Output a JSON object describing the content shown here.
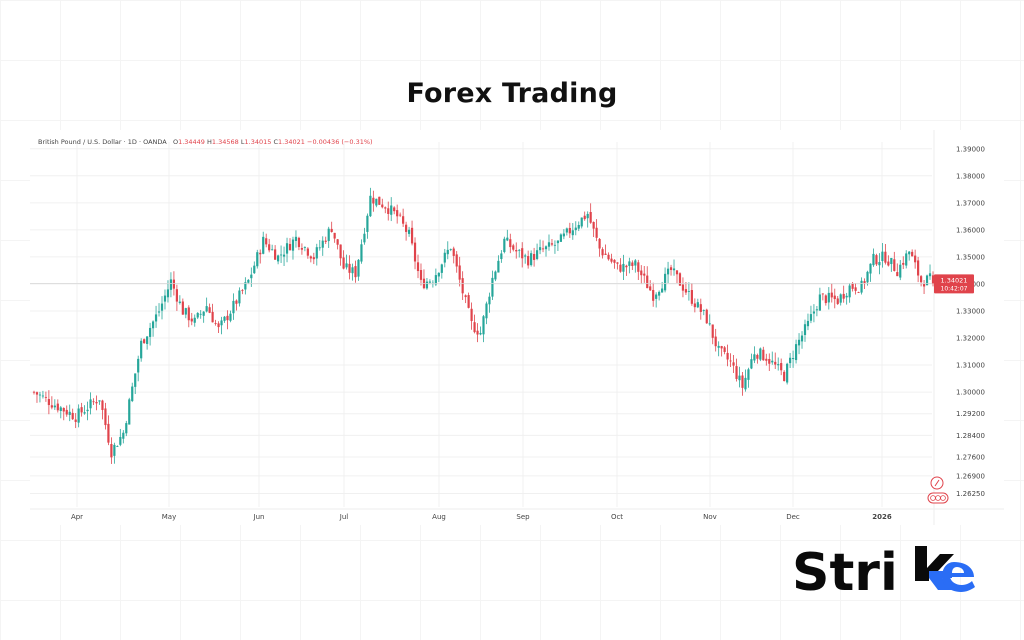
{
  "title": "Forex Trading",
  "brand": {
    "name": "Strike",
    "text_main": "Stri",
    "accent_color": "#2a6df5"
  },
  "colors": {
    "up": "#26a69a",
    "down": "#e0434b",
    "grid": "#f0f0f0",
    "price_line": "#d8d8d8"
  },
  "chart_data": {
    "type": "candlestick",
    "instrument": "British Pound / U.S. Dollar · 1D · OANDA",
    "ohlc_header": {
      "open_label": "O",
      "open": "1.34449",
      "high_label": "H",
      "high": "1.34568",
      "low_label": "L",
      "low": "1.34015",
      "close_label": "C",
      "close": "1.34021",
      "change": "−0.00436 (−0.31%)"
    },
    "ylim": [
      1.2575,
      1.3925
    ],
    "y_ticks": [
      "1.39000",
      "1.38000",
      "1.37000",
      "1.36000",
      "1.35000",
      "1.34000",
      "1.33000",
      "1.32000",
      "1.31000",
      "1.30000",
      "1.29200",
      "1.28400",
      "1.27600",
      "1.26900",
      "1.26250"
    ],
    "x_ticks": [
      "Apr",
      "May",
      "Jun",
      "Jul",
      "Aug",
      "Sep",
      "Oct",
      "Nov",
      "Dec",
      "2026"
    ],
    "current_price": {
      "value": 1.34021,
      "label": "1.34021",
      "countdown": "10:42:07"
    },
    "close_path": [
      [
        0,
        1.3
      ],
      [
        6,
        1.296
      ],
      [
        14,
        1.291
      ],
      [
        22,
        1.298
      ],
      [
        26,
        1.278
      ],
      [
        30,
        1.285
      ],
      [
        36,
        1.318
      ],
      [
        42,
        1.33
      ],
      [
        46,
        1.341
      ],
      [
        50,
        1.33
      ],
      [
        54,
        1.326
      ],
      [
        58,
        1.332
      ],
      [
        62,
        1.323
      ],
      [
        66,
        1.33
      ],
      [
        72,
        1.341
      ],
      [
        77,
        1.356
      ],
      [
        82,
        1.35
      ],
      [
        88,
        1.357
      ],
      [
        94,
        1.35
      ],
      [
        100,
        1.361
      ],
      [
        104,
        1.346
      ],
      [
        108,
        1.344
      ],
      [
        113,
        1.372
      ],
      [
        118,
        1.369
      ],
      [
        122,
        1.365
      ],
      [
        126,
        1.358
      ],
      [
        130,
        1.34
      ],
      [
        134,
        1.342
      ],
      [
        140,
        1.354
      ],
      [
        144,
        1.337
      ],
      [
        147,
        1.325
      ],
      [
        150,
        1.322
      ],
      [
        154,
        1.342
      ],
      [
        158,
        1.356
      ],
      [
        162,
        1.352
      ],
      [
        166,
        1.349
      ],
      [
        170,
        1.352
      ],
      [
        176,
        1.355
      ],
      [
        182,
        1.362
      ],
      [
        186,
        1.366
      ],
      [
        190,
        1.353
      ],
      [
        196,
        1.346
      ],
      [
        202,
        1.347
      ],
      [
        208,
        1.336
      ],
      [
        214,
        1.345
      ],
      [
        220,
        1.336
      ],
      [
        226,
        1.327
      ],
      [
        230,
        1.315
      ],
      [
        234,
        1.311
      ],
      [
        238,
        1.302
      ],
      [
        242,
        1.315
      ],
      [
        246,
        1.313
      ],
      [
        252,
        1.306
      ],
      [
        256,
        1.317
      ],
      [
        260,
        1.325
      ],
      [
        264,
        1.335
      ],
      [
        270,
        1.334
      ],
      [
        274,
        1.339
      ],
      [
        278,
        1.339
      ],
      [
        282,
        1.349
      ],
      [
        286,
        1.35
      ],
      [
        290,
        1.345
      ],
      [
        294,
        1.352
      ],
      [
        298,
        1.341
      ],
      [
        302,
        1.342
      ]
    ]
  }
}
